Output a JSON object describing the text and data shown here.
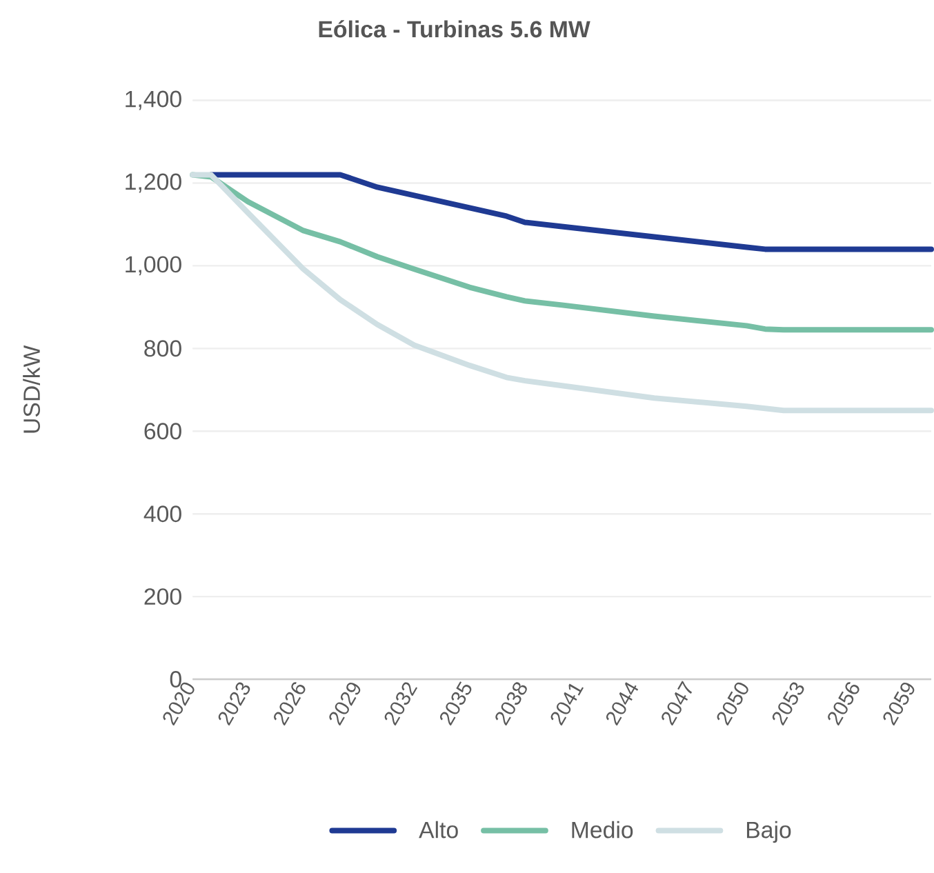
{
  "chart_data": {
    "type": "line",
    "title": "Eólica - Turbinas 5.6 MW",
    "ylabel": "USD/kW",
    "x": [
      2020,
      2021,
      2023,
      2026,
      2028,
      2030,
      2032,
      2035,
      2037,
      2038,
      2040,
      2045,
      2050,
      2051,
      2052,
      2060
    ],
    "series": [
      {
        "name": "Alto",
        "color": "#1f3a93",
        "values": [
          null,
          1220,
          1220,
          1220,
          1220,
          1190,
          1170,
          1140,
          1120,
          1105,
          1095,
          1070,
          1045,
          1040,
          1040,
          1040
        ]
      },
      {
        "name": "Medio",
        "color": "#76bfa5",
        "values": [
          1220,
          1215,
          1155,
          1085,
          1058,
          1022,
          992,
          948,
          925,
          915,
          905,
          878,
          855,
          847,
          845,
          845
        ]
      },
      {
        "name": "Bajo",
        "color": "#cfdfe3",
        "values": [
          1220,
          1220,
          1128,
          992,
          918,
          858,
          808,
          759,
          730,
          722,
          710,
          680,
          660,
          655,
          650,
          650
        ]
      }
    ],
    "xlim": [
      2020,
      2060
    ],
    "xticks": [
      2020,
      2023,
      2026,
      2029,
      2032,
      2035,
      2038,
      2041,
      2044,
      2047,
      2050,
      2053,
      2056,
      2059
    ],
    "ylim": [
      0,
      1400
    ],
    "yticks": [
      0,
      200,
      400,
      600,
      800,
      {
        "value": 1000,
        "label": "1,000"
      },
      {
        "value": 1200,
        "label": "1,200"
      },
      {
        "value": 1400,
        "label": "1,400"
      }
    ],
    "grid": "y",
    "legend": "bottom",
    "marker": "none",
    "line_style": "solid"
  }
}
